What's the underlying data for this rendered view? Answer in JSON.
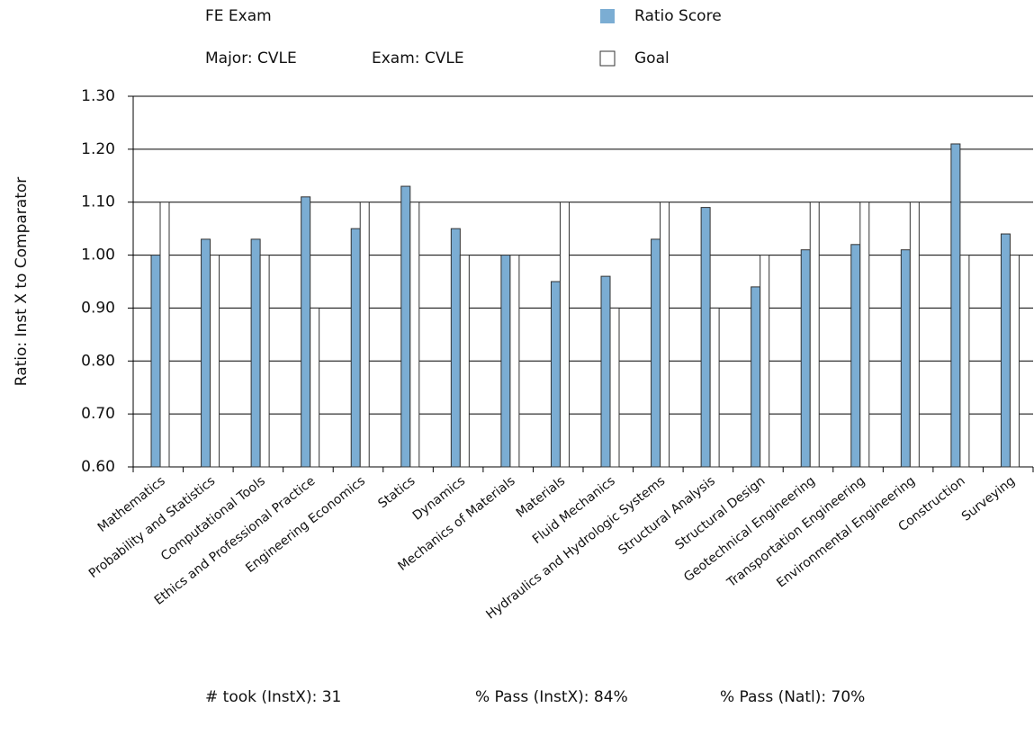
{
  "chart_data": {
    "type": "bar",
    "header": {
      "title": "FE Exam",
      "major": "Major: CVLE",
      "exam": "Exam: CVLE"
    },
    "y_axis_label": "Ratio: Inst X to Comparator",
    "categories": [
      "Mathematics",
      "Probability and Statistics",
      "Computational Tools",
      "Ethics and Professional Practice",
      "Engineering Economics",
      "Statics",
      "Dynamics",
      "Mechanics of Materials",
      "Materials",
      "Fluid Mechanics",
      "Hydraulics and Hydrologic Systems",
      "Structural Analysis",
      "Structural Design",
      "Geotechnical Engineering",
      "Transportation Engineering",
      "Environmental Engineering",
      "Construction",
      "Surveying"
    ],
    "series": [
      {
        "name": "Ratio Score",
        "color": "#7badd3",
        "values": [
          1.0,
          1.03,
          1.03,
          1.11,
          1.05,
          1.13,
          1.05,
          1.0,
          0.95,
          0.96,
          1.03,
          1.09,
          0.94,
          1.01,
          1.02,
          1.01,
          1.21,
          1.04
        ]
      },
      {
        "name": "Goal",
        "color": "#ffffff",
        "values": [
          1.1,
          1.0,
          1.0,
          0.9,
          1.1,
          1.1,
          1.0,
          1.0,
          1.1,
          0.9,
          1.1,
          0.9,
          1.0,
          1.1,
          1.1,
          1.1,
          1.0,
          1.0
        ]
      }
    ],
    "ylim": [
      0.6,
      1.3
    ],
    "yticks": [
      {
        "value": 0.6,
        "label": "0.60"
      },
      {
        "value": 0.7,
        "label": "0.70"
      },
      {
        "value": 0.8,
        "label": "0.80"
      },
      {
        "value": 0.9,
        "label": "0.90"
      },
      {
        "value": 1,
        "label": "1.00"
      },
      {
        "value": 1.1,
        "label": "1.10"
      },
      {
        "value": 1.2,
        "label": "1.20"
      },
      {
        "value": 1.3,
        "label": "1.30"
      }
    ],
    "grid": true,
    "footer": [
      "# took (InstX): 31",
      "% Pass (InstX): 84%",
      "% Pass (Natl): 70%"
    ]
  }
}
